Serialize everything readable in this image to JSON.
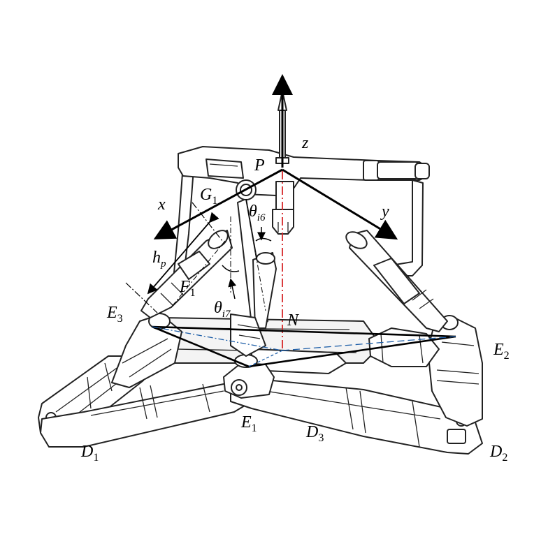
{
  "labels": {
    "z": "z",
    "P": "P",
    "G1_base": "G",
    "G1_sub": "1",
    "x": "x",
    "y": "y",
    "theta_i6_base": "θ",
    "theta_i6_sub": "i6",
    "hp_base": "h",
    "hp_sub": "p",
    "F1_base": "F",
    "F1_sub": "1",
    "theta_i7_base": "θ",
    "theta_i7_sub": "i7",
    "E3_base": "E",
    "E3_sub": "3",
    "N": "N",
    "E2_base": "E",
    "E2_sub": "2",
    "E1_base": "E",
    "E1_sub": "1",
    "D3_base": "D",
    "D3_sub": "3",
    "D1_base": "D",
    "D1_sub": "1",
    "D2_base": "D",
    "D2_sub": "2"
  },
  "colors": {
    "axis": "#000000",
    "centerline": "#d62728",
    "projection": "#1f5fa8",
    "mechanism": "#222222"
  }
}
